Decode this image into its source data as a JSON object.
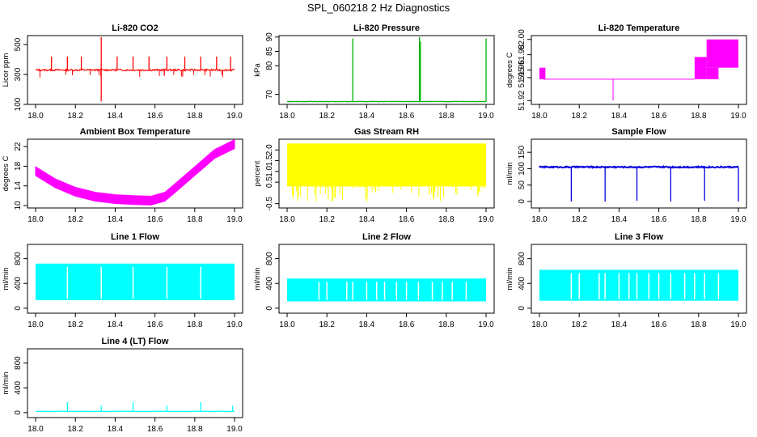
{
  "title": "SPL_060218  2 Hz Diagnostics",
  "chart_data": [
    {
      "id": "co2",
      "type": "line",
      "title": "Li-820 CO2",
      "ylabel": "Licor ppm",
      "color": "#ff0000",
      "xlim": [
        18.0,
        19.0
      ],
      "ylim": [
        100,
        560
      ],
      "xticks": [
        "18.0",
        "18.2",
        "18.4",
        "18.6",
        "18.8",
        "19.0"
      ],
      "yticks": [
        100,
        300,
        500
      ],
      "yticklabels": [
        "100",
        "300",
        "500"
      ],
      "baseline": 330,
      "spikes": [
        {
          "x": 18.08,
          "y": 420
        },
        {
          "x": 18.16,
          "y": 420
        },
        {
          "x": 18.23,
          "y": 420
        },
        {
          "x": 18.33,
          "y": 550
        },
        {
          "x": 18.33,
          "y": 120
        },
        {
          "x": 18.41,
          "y": 420
        },
        {
          "x": 18.49,
          "y": 420
        },
        {
          "x": 18.57,
          "y": 420
        },
        {
          "x": 18.66,
          "y": 420
        },
        {
          "x": 18.75,
          "y": 420
        },
        {
          "x": 18.83,
          "y": 420
        },
        {
          "x": 18.91,
          "y": 420
        },
        {
          "x": 18.98,
          "y": 420
        }
      ]
    },
    {
      "id": "pressure",
      "type": "line",
      "title": "Li-820 Pressure",
      "ylabel": "kPa",
      "color": "#00b000",
      "xlim": [
        18.0,
        19.0
      ],
      "ylim": [
        66.5,
        90.5
      ],
      "xticks": [
        "18.0",
        "18.2",
        "18.4",
        "18.6",
        "18.8",
        "19.0"
      ],
      "yticks": [
        70,
        80,
        85,
        90
      ],
      "yticklabels": [
        "70",
        "80",
        "85",
        "90"
      ],
      "baseline": 67.5,
      "spikes": [
        {
          "x": 18.33,
          "y": 89.5
        },
        {
          "x": 18.665,
          "y": 90
        },
        {
          "x": 18.67,
          "y": 88.5
        },
        {
          "x": 19.0,
          "y": 89.5
        }
      ]
    },
    {
      "id": "temperature",
      "type": "line",
      "title": "Li-820 Temperature",
      "ylabel": "degrees C",
      "color": "#ff00ff",
      "xlim": [
        18.0,
        19.0
      ],
      "ylim": [
        51.915,
        52.005
      ],
      "xticks": [
        "18.0",
        "18.2",
        "18.4",
        "18.6",
        "18.8",
        "19.0"
      ],
      "yticks": [
        51.92,
        51.95,
        51.96,
        51.98,
        52.0
      ],
      "yticklabels": [
        "51.92",
        "51.95",
        "51.96",
        "51.98",
        "52.00"
      ],
      "levels": {
        "base": 51.948,
        "low": 51.92,
        "mid": 51.963,
        "high": 51.977,
        "top": 52.0
      }
    },
    {
      "id": "ambient",
      "type": "line",
      "title": "Ambient Box Temperature",
      "ylabel": "degrees C",
      "color": "#ff00ff",
      "xlim": [
        18.0,
        19.0
      ],
      "ylim": [
        9.5,
        23.5
      ],
      "xticks": [
        "18.0",
        "18.2",
        "18.4",
        "18.6",
        "18.8",
        "19.0"
      ],
      "yticks": [
        10,
        14,
        18,
        22
      ],
      "yticklabels": [
        "10",
        "14",
        "18",
        "22"
      ],
      "points": [
        [
          18.0,
          17
        ],
        [
          18.1,
          14.5
        ],
        [
          18.2,
          12.8
        ],
        [
          18.3,
          11.8
        ],
        [
          18.4,
          11.3
        ],
        [
          18.5,
          11.1
        ],
        [
          18.58,
          11.0
        ],
        [
          18.65,
          11.8
        ],
        [
          18.7,
          13.5
        ],
        [
          18.8,
          17
        ],
        [
          18.9,
          20.5
        ],
        [
          19.0,
          22.5
        ]
      ]
    },
    {
      "id": "rh",
      "type": "area",
      "title": "Gas Stream RH",
      "ylabel": "percent",
      "color": "#ffff00",
      "xlim": [
        18.0,
        19.0
      ],
      "ylim": [
        -0.7,
        2.5
      ],
      "xticks": [
        "18.0",
        "18.2",
        "18.4",
        "18.6",
        "18.8",
        "19.0"
      ],
      "yticks": [
        -0.5,
        0.5,
        1.0,
        1.5,
        2.0
      ],
      "yticklabels": [
        "-0.5",
        "0.5",
        "1.0",
        "1.5",
        "2.0"
      ],
      "band": [
        0.3,
        2.3
      ]
    },
    {
      "id": "sample",
      "type": "line",
      "title": "Sample Flow",
      "ylabel": "ml/min",
      "color": "#0000dd",
      "xlim": [
        18.0,
        19.0
      ],
      "ylim": [
        -20,
        190
      ],
      "xticks": [
        "18.0",
        "18.2",
        "18.4",
        "18.6",
        "18.8",
        "19.0"
      ],
      "yticks": [
        0,
        50,
        100,
        150
      ],
      "yticklabels": [
        "0",
        "50",
        "100",
        "150"
      ],
      "baseline": 105,
      "spikes": [
        {
          "x": 18.16,
          "y": 0
        },
        {
          "x": 18.33,
          "y": 0
        },
        {
          "x": 18.49,
          "y": 2
        },
        {
          "x": 18.66,
          "y": 0
        },
        {
          "x": 18.83,
          "y": 2
        },
        {
          "x": 19.0,
          "y": 0
        }
      ]
    },
    {
      "id": "line1",
      "type": "area",
      "title": "Line 1 Flow",
      "ylabel": "ml/min",
      "color": "#00ffff",
      "xlim": [
        18.0,
        19.0
      ],
      "ylim": [
        -80,
        1030
      ],
      "xticks": [
        "18.0",
        "18.2",
        "18.4",
        "18.6",
        "18.8",
        "19.0"
      ],
      "yticks": [
        0,
        400,
        800
      ],
      "yticklabels": [
        "0",
        "400",
        "800"
      ],
      "band": [
        130,
        720
      ],
      "gaps": [
        18.16,
        18.33,
        18.49,
        18.66,
        18.83
      ]
    },
    {
      "id": "line2",
      "type": "area",
      "title": "Line 2 Flow",
      "ylabel": "ml/min",
      "color": "#00ffff",
      "xlim": [
        18.0,
        19.0
      ],
      "ylim": [
        -80,
        1030
      ],
      "xticks": [
        "18.0",
        "18.2",
        "18.4",
        "18.6",
        "18.8",
        "19.0"
      ],
      "yticks": [
        0,
        400,
        800
      ],
      "yticklabels": [
        "0",
        "400",
        "800"
      ],
      "band": [
        110,
        480
      ],
      "gaps": [
        18.16,
        18.2,
        18.3,
        18.33,
        18.4,
        18.45,
        18.49,
        18.55,
        18.6,
        18.66,
        18.73,
        18.78,
        18.83,
        18.9
      ]
    },
    {
      "id": "line3",
      "type": "area",
      "title": "Line 3 Flow",
      "ylabel": "ml/min",
      "color": "#00ffff",
      "xlim": [
        18.0,
        19.0
      ],
      "ylim": [
        -80,
        1030
      ],
      "xticks": [
        "18.0",
        "18.2",
        "18.4",
        "18.6",
        "18.8",
        "19.0"
      ],
      "yticks": [
        0,
        400,
        800
      ],
      "yticklabels": [
        "0",
        "400",
        "800"
      ],
      "band": [
        120,
        620
      ],
      "gaps": [
        18.16,
        18.2,
        18.3,
        18.33,
        18.4,
        18.45,
        18.49,
        18.55,
        18.6,
        18.66,
        18.73,
        18.78,
        18.83,
        18.9
      ]
    },
    {
      "id": "line4",
      "type": "line",
      "title": "Line 4 (LT) Flow",
      "ylabel": "ml/min",
      "color": "#00ffff",
      "xlim": [
        18.0,
        19.0
      ],
      "ylim": [
        -80,
        1030
      ],
      "xticks": [
        "18.0",
        "18.2",
        "18.4",
        "18.6",
        "18.8",
        "19.0"
      ],
      "yticks": [
        0,
        400,
        800
      ],
      "yticklabels": [
        "0",
        "400",
        "800"
      ],
      "baseline": 20,
      "spikes": [
        {
          "x": 18.16,
          "y": 170
        },
        {
          "x": 18.33,
          "y": 110
        },
        {
          "x": 18.49,
          "y": 170
        },
        {
          "x": 18.66,
          "y": 110
        },
        {
          "x": 18.83,
          "y": 170
        },
        {
          "x": 18.99,
          "y": 110
        }
      ]
    }
  ]
}
